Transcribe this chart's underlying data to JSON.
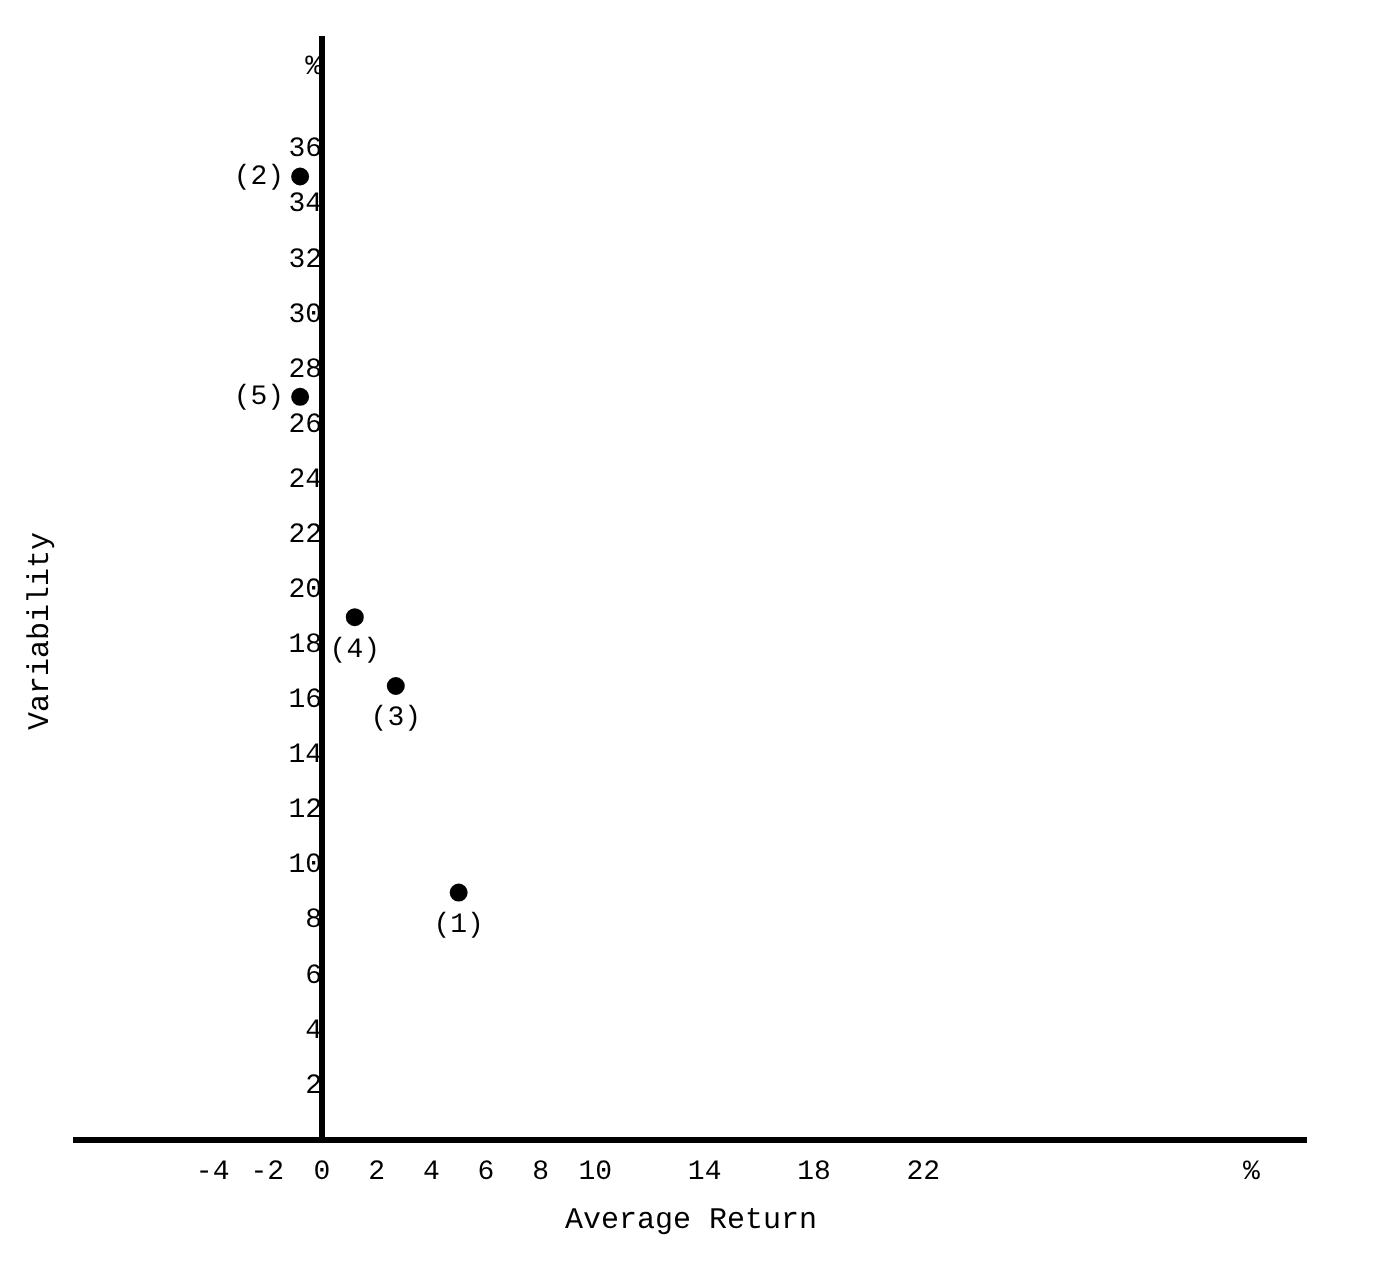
{
  "chart_data": {
    "type": "scatter",
    "xlabel": "Average Return",
    "ylabel": "Variability",
    "x": [
      5,
      -0.8,
      2.7,
      1.2,
      -0.8
    ],
    "values": [
      9,
      35,
      16.5,
      19,
      27
    ],
    "color": "#000000",
    "marker": "circle",
    "grid": false,
    "legend": false,
    "xlim": [
      -9,
      36
    ],
    "xticks": [
      -4,
      -2,
      0,
      2,
      4,
      6,
      8,
      10,
      14,
      18,
      22,
      {
        "value": 34,
        "label": "%"
      }
    ],
    "ylim": [
      0,
      40
    ],
    "yticks": [
      2,
      4,
      6,
      8,
      10,
      12,
      14,
      16,
      18,
      20,
      22,
      24,
      26,
      28,
      30,
      32,
      34,
      36,
      {
        "value": 39,
        "label": "%"
      }
    ],
    "annotations": [
      {
        "text": "(1)",
        "x": 5,
        "y": 9
      },
      {
        "text": "(2)",
        "x": -0.8,
        "y": 35
      },
      {
        "text": "(3)",
        "x": 2.7,
        "y": 16.5
      },
      {
        "text": "(4)",
        "x": 1.2,
        "y": 19
      },
      {
        "text": "(5)",
        "x": -0.8,
        "y": 27
      }
    ]
  }
}
